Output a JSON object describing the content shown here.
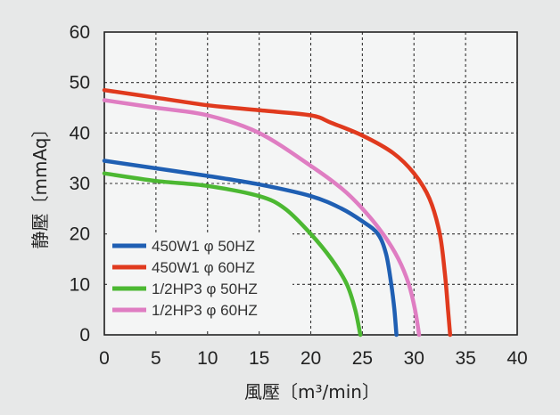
{
  "chart_data": {
    "type": "line",
    "title": "",
    "xlabel": "風壓〔m³/min〕",
    "ylabel": "静壓〔mmAq〕",
    "xlim": [
      0,
      40
    ],
    "ylim": [
      0,
      60
    ],
    "x_ticks": [
      "0",
      "5",
      "10",
      "15",
      "20",
      "25",
      "30",
      "35",
      "40"
    ],
    "y_ticks": [
      "0",
      "10",
      "20",
      "30",
      "40",
      "50",
      "60"
    ],
    "grid": true,
    "legend_position": "bottom-left",
    "series": [
      {
        "name": "450W1 φ 50HZ",
        "color": "#1f5fb3",
        "points": [
          [
            0,
            34.5
          ],
          [
            5,
            33
          ],
          [
            10,
            31.5
          ],
          [
            15,
            29.8
          ],
          [
            20,
            27.5
          ],
          [
            23,
            25
          ],
          [
            25,
            22.5
          ],
          [
            26.5,
            20
          ],
          [
            27.3,
            16
          ],
          [
            27.8,
            10
          ],
          [
            28.1,
            5
          ],
          [
            28.3,
            0
          ]
        ]
      },
      {
        "name": "450W1 φ 60HZ",
        "color": "#e03a1e",
        "points": [
          [
            0,
            48.5
          ],
          [
            5,
            47
          ],
          [
            10,
            45.5
          ],
          [
            15,
            44.5
          ],
          [
            20,
            43.5
          ],
          [
            22,
            42
          ],
          [
            25,
            39.5
          ],
          [
            28,
            36
          ],
          [
            30,
            32
          ],
          [
            31.5,
            27
          ],
          [
            32.5,
            20
          ],
          [
            33,
            12
          ],
          [
            33.3,
            5
          ],
          [
            33.5,
            0
          ]
        ]
      },
      {
        "name": "1/2HP3 φ 50HZ",
        "color": "#4cb832",
        "points": [
          [
            0,
            32
          ],
          [
            5,
            30.5
          ],
          [
            10,
            29.5
          ],
          [
            15,
            27.5
          ],
          [
            17.5,
            25
          ],
          [
            20,
            20
          ],
          [
            22,
            15
          ],
          [
            23.5,
            10
          ],
          [
            24.3,
            5
          ],
          [
            24.8,
            0
          ]
        ]
      },
      {
        "name": "1/2HP3 φ 60HZ",
        "color": "#df7dc2",
        "points": [
          [
            0,
            46.5
          ],
          [
            5,
            45
          ],
          [
            10,
            43.5
          ],
          [
            15,
            40
          ],
          [
            20,
            33.5
          ],
          [
            23,
            29
          ],
          [
            25,
            25
          ],
          [
            27,
            20
          ],
          [
            28.5,
            15
          ],
          [
            29.5,
            10
          ],
          [
            30.1,
            5
          ],
          [
            30.5,
            0
          ]
        ]
      }
    ]
  }
}
